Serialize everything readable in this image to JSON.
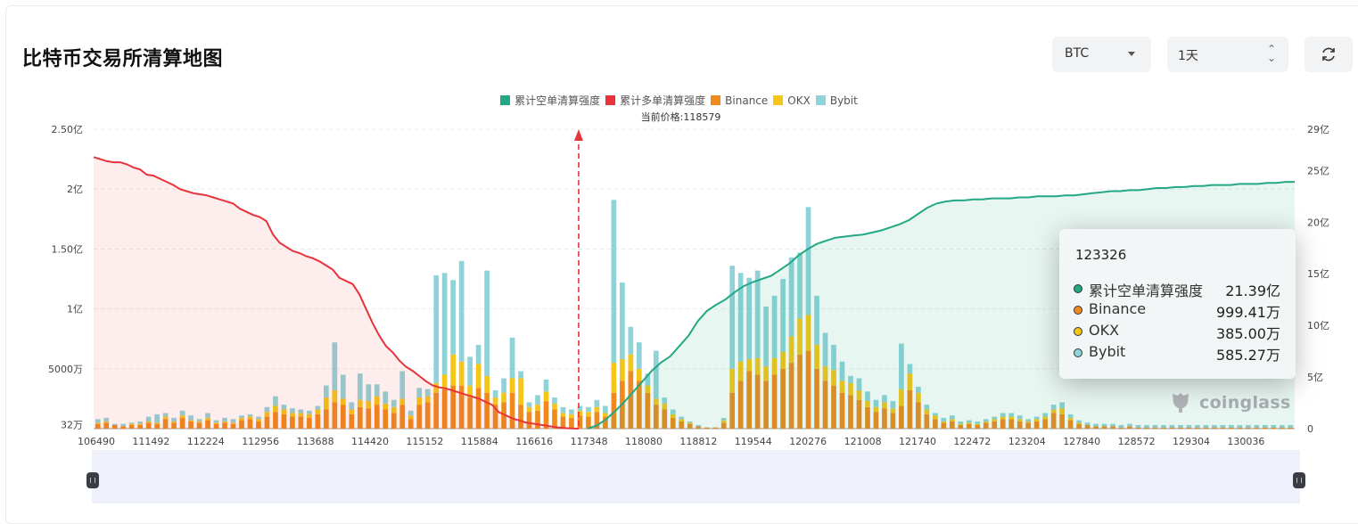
{
  "header": {
    "title": "比特币交易所清算地图",
    "symbol_select": "BTC",
    "timeframe_select": "1天",
    "refresh_icon": "refresh-icon"
  },
  "legend": [
    {
      "label": "累计空单清算强度",
      "color": "#22a884"
    },
    {
      "label": "累计多单清算强度",
      "color": "#e8323c"
    },
    {
      "label": "Binance",
      "color": "#f08a1e"
    },
    {
      "label": "OKX",
      "color": "#f5c518"
    },
    {
      "label": "Bybit",
      "color": "#8fd3d9"
    }
  ],
  "current_price_label": "当前价格:118579",
  "tooltip": {
    "title": "123326",
    "rows": [
      {
        "name": "累计空单清算强度",
        "value": "21.39亿",
        "color": "#22a884"
      },
      {
        "name": "Binance",
        "value": "999.41万",
        "color": "#f08a1e"
      },
      {
        "name": "OKX",
        "value": "385.00万",
        "color": "#f5c518"
      },
      {
        "name": "Bybit",
        "value": "585.27万",
        "color": "#8fd3d9"
      }
    ]
  },
  "watermark": "coinglass",
  "chart_data": {
    "type": "bar",
    "x_ticks": [
      "106490",
      "111492",
      "112224",
      "112956",
      "113688",
      "114420",
      "115152",
      "115884",
      "116616",
      "117348",
      "118080",
      "118812",
      "119544",
      "120276",
      "121008",
      "121740",
      "122472",
      "123204",
      "127840",
      "128572",
      "129304",
      "130036"
    ],
    "left_axis": {
      "ticks": [
        "32万",
        "5000万",
        "1亿",
        "1.50亿",
        "2亿",
        "2.50亿"
      ],
      "values": [
        0.032,
        0.5,
        1.0,
        1.5,
        2.0,
        2.5
      ],
      "unit": "亿"
    },
    "right_axis": {
      "ticks": [
        "0",
        "5亿",
        "10亿",
        "15亿",
        "20亿",
        "25亿",
        "29亿"
      ],
      "values": [
        0,
        5,
        10,
        15,
        20,
        25,
        29
      ],
      "unit": "亿"
    },
    "current_price": 118579,
    "current_price_index": 56,
    "colors": {
      "binance": "#f08a1e",
      "okx": "#f5c518",
      "bybit": "#8fd3d9",
      "long": "#e8323c",
      "short": "#22a884"
    },
    "bars_binance": [
      0.04,
      0.05,
      0.03,
      0.02,
      0.03,
      0.03,
      0.05,
      0.04,
      0.08,
      0.05,
      0.09,
      0.06,
      0.05,
      0.07,
      0.04,
      0.05,
      0.04,
      0.07,
      0.08,
      0.06,
      0.1,
      0.14,
      0.12,
      0.1,
      0.1,
      0.09,
      0.12,
      0.16,
      0.22,
      0.2,
      0.12,
      0.18,
      0.17,
      0.2,
      0.16,
      0.13,
      0.2,
      0.08,
      0.2,
      0.22,
      0.3,
      0.33,
      0.36,
      0.36,
      0.26,
      0.34,
      0.3,
      0.2,
      0.22,
      0.3,
      0.2,
      0.14,
      0.15,
      0.23,
      0.16,
      0.1,
      0.09,
      0.11,
      0.1,
      0.14,
      0.1,
      0.3,
      0.4,
      0.48,
      0.4,
      0.3,
      0.2,
      0.16,
      0.09,
      0.06,
      0.04,
      0.02,
      0.01,
      0.01,
      0.05,
      0.3,
      0.4,
      0.48,
      0.45,
      0.4,
      0.45,
      0.5,
      0.55,
      0.62,
      0.65,
      0.5,
      0.4,
      0.36,
      0.3,
      0.28,
      0.24,
      0.18,
      0.14,
      0.17,
      0.13,
      0.19,
      0.32,
      0.22,
      0.12,
      0.08,
      0.05,
      0.06,
      0.03,
      0.04,
      0.03,
      0.05,
      0.06,
      0.08,
      0.08,
      0.06,
      0.05,
      0.06,
      0.08,
      0.13,
      0.12,
      0.07,
      0.04,
      0.03,
      0.02,
      0.02,
      0.02,
      0.01,
      0.02,
      0.01,
      0.01,
      0.01,
      0.01,
      0.01,
      0.01,
      0.01,
      0.01,
      0.01,
      0.01,
      0.01,
      0.01,
      0.01,
      0.01,
      0.01,
      0.01,
      0.01,
      0.01,
      0.01
    ],
    "bars_okx": [
      0.01,
      0.01,
      0.0,
      0.0,
      0.01,
      0.01,
      0.01,
      0.01,
      0.02,
      0.01,
      0.02,
      0.01,
      0.01,
      0.02,
      0.01,
      0.01,
      0.01,
      0.02,
      0.02,
      0.02,
      0.04,
      0.05,
      0.04,
      0.03,
      0.03,
      0.03,
      0.04,
      0.1,
      0.1,
      0.05,
      0.04,
      0.06,
      0.06,
      0.07,
      0.05,
      0.05,
      0.05,
      0.03,
      0.06,
      0.05,
      0.08,
      0.12,
      0.26,
      0.2,
      0.1,
      0.2,
      0.14,
      0.06,
      0.08,
      0.12,
      0.22,
      0.04,
      0.05,
      0.08,
      0.05,
      0.03,
      0.03,
      0.04,
      0.04,
      0.04,
      0.03,
      0.25,
      0.18,
      0.14,
      0.1,
      0.06,
      0.05,
      0.05,
      0.03,
      0.02,
      0.01,
      0.0,
      0.0,
      0.0,
      0.02,
      0.2,
      0.16,
      0.1,
      0.14,
      0.12,
      0.14,
      0.14,
      0.22,
      0.3,
      0.3,
      0.2,
      0.12,
      0.13,
      0.1,
      0.1,
      0.08,
      0.05,
      0.04,
      0.05,
      0.04,
      0.14,
      0.14,
      0.08,
      0.04,
      0.03,
      0.01,
      0.02,
      0.01,
      0.01,
      0.01,
      0.01,
      0.02,
      0.02,
      0.02,
      0.02,
      0.01,
      0.02,
      0.02,
      0.03,
      0.05,
      0.02,
      0.01,
      0.0,
      0.0,
      0.0,
      0.0,
      0.0,
      0.0,
      0.0,
      0.0,
      0.0,
      0.0,
      0.0,
      0.0,
      0.0,
      0.0,
      0.0,
      0.0,
      0.0,
      0.0,
      0.0,
      0.0,
      0.0,
      0.0,
      0.0,
      0.0,
      0.0
    ],
    "bars_bybit": [
      0.03,
      0.03,
      0.01,
      0.02,
      0.01,
      0.02,
      0.04,
      0.07,
      0.03,
      0.03,
      0.04,
      0.04,
      0.02,
      0.04,
      0.02,
      0.03,
      0.03,
      0.02,
      0.02,
      0.02,
      0.04,
      0.08,
      0.04,
      0.04,
      0.03,
      0.03,
      0.03,
      0.1,
      0.4,
      0.2,
      0.06,
      0.22,
      0.14,
      0.1,
      0.1,
      0.06,
      0.23,
      0.04,
      0.08,
      0.06,
      0.9,
      0.85,
      0.62,
      0.84,
      0.24,
      0.16,
      0.88,
      0.06,
      0.12,
      0.34,
      0.06,
      0.04,
      0.08,
      0.1,
      0.05,
      0.05,
      0.04,
      0.04,
      0.04,
      0.06,
      0.06,
      1.36,
      0.64,
      0.23,
      0.22,
      0.1,
      0.4,
      0.05,
      0.04,
      0.02,
      0.01,
      0.01,
      0.0,
      0.0,
      0.02,
      0.86,
      0.74,
      0.68,
      0.73,
      0.5,
      0.52,
      0.61,
      0.66,
      0.55,
      0.9,
      0.41,
      0.28,
      0.21,
      0.16,
      0.06,
      0.1,
      0.08,
      0.06,
      0.06,
      0.06,
      0.38,
      0.08,
      0.05,
      0.04,
      0.02,
      0.03,
      0.03,
      0.02,
      0.02,
      0.02,
      0.02,
      0.02,
      0.03,
      0.03,
      0.03,
      0.02,
      0.02,
      0.03,
      0.04,
      0.05,
      0.03,
      0.02,
      0.02,
      0.02,
      0.02,
      0.02,
      0.02,
      0.02,
      0.02,
      0.02,
      0.02,
      0.02,
      0.02,
      0.02,
      0.02,
      0.02,
      0.02,
      0.02,
      0.02,
      0.02,
      0.02,
      0.02,
      0.02,
      0.02,
      0.02,
      0.02,
      0.02
    ],
    "long_cumulative": [
      26.3,
      26.1,
      25.9,
      25.8,
      25.8,
      25.6,
      25.3,
      25.1,
      24.6,
      24.5,
      24.2,
      23.9,
      23.6,
      23.2,
      23.0,
      22.8,
      22.7,
      22.6,
      22.4,
      22.2,
      22.0,
      21.8,
      21.3,
      21.0,
      20.7,
      20.5,
      20.1,
      18.8,
      18.0,
      17.6,
      17.2,
      17.0,
      16.7,
      16.5,
      16.2,
      15.8,
      15.4,
      14.6,
      14.3,
      14.0,
      13.0,
      11.6,
      10.2,
      9.0,
      8.0,
      7.4,
      6.6,
      6.0,
      5.6,
      5.1,
      4.6,
      4.2,
      4.0,
      3.9,
      3.7,
      3.5,
      3.3,
      3.1,
      2.9,
      2.6,
      2.3,
      1.6,
      1.3,
      1.0,
      0.8,
      0.6,
      0.5,
      0.4,
      0.3,
      0.2,
      0.1,
      0.05,
      0.02,
      0.0
    ],
    "short_cumulative": [
      0.0,
      0.3,
      0.9,
      1.7,
      2.6,
      3.6,
      4.6,
      5.6,
      6.4,
      7.0,
      8.0,
      9.0,
      10.4,
      11.4,
      12.0,
      12.5,
      13.2,
      13.8,
      14.2,
      14.5,
      14.8,
      15.4,
      16.0,
      16.8,
      17.4,
      17.9,
      18.2,
      18.5,
      18.6,
      18.7,
      18.8,
      19.0,
      19.2,
      19.5,
      19.8,
      20.2,
      20.8,
      21.4,
      21.8,
      22.0,
      22.1,
      22.1,
      22.2,
      22.2,
      22.3,
      22.3,
      22.3,
      22.4,
      22.4,
      22.5,
      22.5,
      22.5,
      22.6,
      22.6,
      22.7,
      22.8,
      22.9,
      23.0,
      23.0,
      23.1,
      23.1,
      23.2,
      23.3,
      23.3,
      23.4,
      23.4,
      23.5,
      23.5,
      23.6,
      23.6,
      23.6,
      23.7,
      23.7,
      23.7,
      23.8,
      23.8,
      23.9,
      23.9
    ]
  }
}
